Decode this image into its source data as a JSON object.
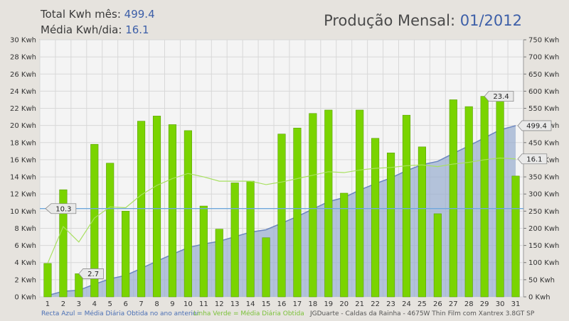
{
  "header": {
    "total_label": "Total Kwh mês:",
    "total_value": "499.4",
    "avg_label": "Média Kwh/dia:",
    "avg_value": "16.1",
    "title_label": "Produção Mensal:",
    "title_period": "01/2012"
  },
  "footer": {
    "blue_note": "Recta Azul = Média Diária Obtida no ano anterior",
    "green_note": "Linha Verde = Média Diária Obtida",
    "credit": "JGDuarte  -  Caldas da Rainha  -  4675W Thin Film com Xantrex 3.8GT SP"
  },
  "colors": {
    "bar": "#7ad400",
    "bar_edge": "#5aa000",
    "area": "#9aaed0",
    "area_line": "#6b86bf",
    "avg_line": "#a8e060",
    "ref_line": "#6fa8dc",
    "plot_bg": "#f4f4f4",
    "grid": "#d8d8d8"
  },
  "chart_data": {
    "type": "bar",
    "x": [
      "1",
      "2",
      "3",
      "4",
      "5",
      "6",
      "7",
      "8",
      "9",
      "10",
      "11",
      "12",
      "13",
      "14",
      "15",
      "16",
      "17",
      "18",
      "19",
      "20",
      "21",
      "22",
      "23",
      "24",
      "25",
      "26",
      "27",
      "28",
      "29",
      "30",
      "31"
    ],
    "ylabel_unit": "Kwh",
    "ylim": [
      0,
      30
    ],
    "y_ticks": [
      0,
      2,
      4,
      6,
      8,
      10,
      12,
      14,
      16,
      18,
      20,
      22,
      24,
      26,
      28,
      30
    ],
    "y2lim": [
      0,
      750
    ],
    "y2_ticks": [
      0,
      50,
      100,
      150,
      200,
      250,
      300,
      350,
      400,
      450,
      500,
      550,
      600,
      650,
      700,
      750
    ],
    "grid": true,
    "series": [
      {
        "kind": "bar",
        "axis": "left",
        "values": [
          3.9,
          12.5,
          2.7,
          17.8,
          15.6,
          10.0,
          20.5,
          21.1,
          20.1,
          19.4,
          10.6,
          7.9,
          13.3,
          13.5,
          6.9,
          19.0,
          19.7,
          21.4,
          21.8,
          12.1,
          21.8,
          18.5,
          16.8,
          21.2,
          17.5,
          9.7,
          23.0,
          22.2,
          23.4,
          23.3,
          14.1
        ]
      },
      {
        "kind": "area",
        "axis": "right",
        "values": [
          3.9,
          16.4,
          19.1,
          36.9,
          52.5,
          62.5,
          83.0,
          104.1,
          124.2,
          143.6,
          154.2,
          162.1,
          175.4,
          188.9,
          195.8,
          214.8,
          234.5,
          255.9,
          277.7,
          289.8,
          311.6,
          330.1,
          346.9,
          368.1,
          385.6,
          395.3,
          418.3,
          440.5,
          463.9,
          487.2,
          499.4
        ]
      },
      {
        "kind": "line",
        "axis": "left",
        "values": [
          3.9,
          8.2,
          6.4,
          9.2,
          10.5,
          10.4,
          11.9,
          13.0,
          13.8,
          14.4,
          14.0,
          13.5,
          13.5,
          13.5,
          13.1,
          13.4,
          13.8,
          14.2,
          14.6,
          14.5,
          14.8,
          15.0,
          15.1,
          15.3,
          15.4,
          15.2,
          15.5,
          15.7,
          16.0,
          16.2,
          16.1
        ]
      },
      {
        "kind": "reference",
        "axis": "left",
        "value": 10.3
      }
    ],
    "annotations": [
      {
        "text": "10.3",
        "x": "1",
        "y": 10.3,
        "axis": "left"
      },
      {
        "text": "2.7",
        "x": "3",
        "y": 2.7,
        "axis": "left"
      },
      {
        "text": "23.4",
        "x": "29",
        "y": 23.4,
        "axis": "left"
      },
      {
        "text": "499.4",
        "x": "31",
        "y": 499.4,
        "axis": "right"
      },
      {
        "text": "16.1",
        "x": "31",
        "y": 16.1,
        "axis": "left"
      }
    ]
  }
}
